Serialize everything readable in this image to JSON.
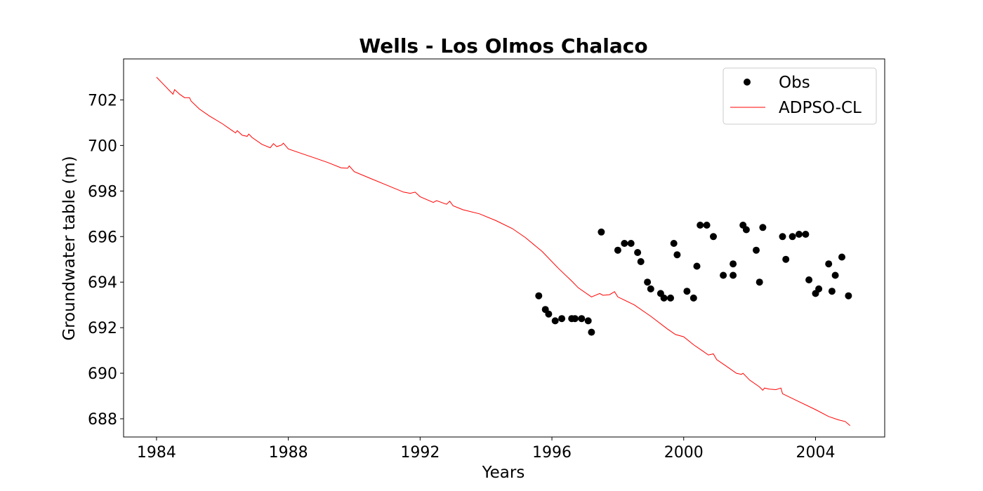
{
  "chart_data": {
    "type": "line",
    "title": "Wells - Los Olmos Chalaco",
    "xlabel": "Years",
    "ylabel": "Groundwater table (m)",
    "xlim": [
      1983.0,
      2006.1
    ],
    "ylim": [
      687.2,
      703.8
    ],
    "x_ticks": [
      1984,
      1988,
      1992,
      1996,
      2000,
      2004
    ],
    "y_ticks": [
      688,
      690,
      692,
      694,
      696,
      698,
      700,
      702
    ],
    "grid": false,
    "legend_position": "upper right",
    "colors": {
      "Obs": "#000000",
      "ADPSO-CL": "#ff0000"
    },
    "series": [
      {
        "name": "Obs",
        "style": "markers",
        "points": [
          [
            1995.6,
            693.4
          ],
          [
            1995.8,
            692.8
          ],
          [
            1995.9,
            692.6
          ],
          [
            1996.1,
            692.3
          ],
          [
            1996.3,
            692.4
          ],
          [
            1996.6,
            692.4
          ],
          [
            1996.7,
            692.4
          ],
          [
            1996.9,
            692.4
          ],
          [
            1997.1,
            692.3
          ],
          [
            1997.2,
            691.8
          ],
          [
            1997.5,
            696.2
          ],
          [
            1998.0,
            695.4
          ],
          [
            1998.2,
            695.7
          ],
          [
            1998.4,
            695.7
          ],
          [
            1998.6,
            695.3
          ],
          [
            1998.7,
            694.9
          ],
          [
            1998.9,
            694.0
          ],
          [
            1999.0,
            693.7
          ],
          [
            1999.3,
            693.5
          ],
          [
            1999.4,
            693.3
          ],
          [
            1999.6,
            693.3
          ],
          [
            1999.7,
            695.7
          ],
          [
            1999.8,
            695.2
          ],
          [
            2000.1,
            693.6
          ],
          [
            2000.3,
            693.3
          ],
          [
            2000.4,
            694.7
          ],
          [
            2000.5,
            696.5
          ],
          [
            2000.7,
            696.5
          ],
          [
            2000.9,
            696.0
          ],
          [
            2001.2,
            694.3
          ],
          [
            2001.5,
            694.3
          ],
          [
            2001.5,
            694.8
          ],
          [
            2001.8,
            696.5
          ],
          [
            2001.9,
            696.3
          ],
          [
            2002.2,
            695.4
          ],
          [
            2002.3,
            694.0
          ],
          [
            2002.4,
            696.4
          ],
          [
            2003.0,
            696.0
          ],
          [
            2003.1,
            695.0
          ],
          [
            2003.3,
            696.0
          ],
          [
            2003.5,
            696.1
          ],
          [
            2003.7,
            696.1
          ],
          [
            2003.8,
            694.1
          ],
          [
            2004.0,
            693.5
          ],
          [
            2004.1,
            693.7
          ],
          [
            2004.4,
            694.8
          ],
          [
            2004.5,
            693.6
          ],
          [
            2004.6,
            694.3
          ],
          [
            2004.8,
            695.1
          ],
          [
            2005.0,
            693.4
          ]
        ]
      },
      {
        "name": "ADPSO-CL",
        "style": "line",
        "points": [
          [
            1984.0,
            703.0
          ],
          [
            1984.2,
            702.7
          ],
          [
            1984.4,
            702.4
          ],
          [
            1984.5,
            702.25
          ],
          [
            1984.55,
            702.45
          ],
          [
            1984.7,
            702.25
          ],
          [
            1984.85,
            702.1
          ],
          [
            1985.0,
            702.1
          ],
          [
            1985.05,
            701.95
          ],
          [
            1985.3,
            701.6
          ],
          [
            1985.6,
            701.3
          ],
          [
            1986.0,
            700.95
          ],
          [
            1986.3,
            700.65
          ],
          [
            1986.4,
            700.55
          ],
          [
            1986.45,
            700.65
          ],
          [
            1986.6,
            700.45
          ],
          [
            1986.75,
            700.4
          ],
          [
            1986.8,
            700.5
          ],
          [
            1986.9,
            700.35
          ],
          [
            1987.2,
            700.05
          ],
          [
            1987.45,
            699.9
          ],
          [
            1987.55,
            700.08
          ],
          [
            1987.65,
            699.95
          ],
          [
            1987.8,
            700.02
          ],
          [
            1987.85,
            700.1
          ],
          [
            1988.0,
            699.85
          ],
          [
            1988.4,
            699.65
          ],
          [
            1988.8,
            699.45
          ],
          [
            1989.2,
            699.25
          ],
          [
            1989.6,
            699.02
          ],
          [
            1989.8,
            699.0
          ],
          [
            1989.85,
            699.1
          ],
          [
            1990.0,
            698.85
          ],
          [
            1990.5,
            698.55
          ],
          [
            1991.0,
            698.25
          ],
          [
            1991.5,
            697.95
          ],
          [
            1991.7,
            697.9
          ],
          [
            1991.85,
            697.95
          ],
          [
            1992.0,
            697.75
          ],
          [
            1992.4,
            697.5
          ],
          [
            1992.5,
            697.58
          ],
          [
            1992.8,
            697.42
          ],
          [
            1992.9,
            697.55
          ],
          [
            1993.0,
            697.35
          ],
          [
            1993.3,
            697.18
          ],
          [
            1993.8,
            697.0
          ],
          [
            1994.3,
            696.7
          ],
          [
            1994.8,
            696.35
          ],
          [
            1995.2,
            695.95
          ],
          [
            1995.7,
            695.35
          ],
          [
            1996.2,
            694.6
          ],
          [
            1996.6,
            694.05
          ],
          [
            1996.8,
            693.75
          ],
          [
            1997.2,
            693.35
          ],
          [
            1997.45,
            693.5
          ],
          [
            1997.55,
            693.42
          ],
          [
            1997.75,
            693.45
          ],
          [
            1997.9,
            693.58
          ],
          [
            1998.0,
            693.35
          ],
          [
            1998.5,
            693.0
          ],
          [
            1999.0,
            692.5
          ],
          [
            1999.5,
            691.95
          ],
          [
            1999.75,
            691.7
          ],
          [
            2000.0,
            691.6
          ],
          [
            2000.3,
            691.25
          ],
          [
            2000.6,
            690.95
          ],
          [
            2000.75,
            690.8
          ],
          [
            2000.9,
            690.85
          ],
          [
            2001.0,
            690.6
          ],
          [
            2001.3,
            690.3
          ],
          [
            2001.6,
            690.0
          ],
          [
            2001.75,
            689.95
          ],
          [
            2001.8,
            690.0
          ],
          [
            2002.0,
            689.7
          ],
          [
            2002.3,
            689.4
          ],
          [
            2002.4,
            689.25
          ],
          [
            2002.45,
            689.35
          ],
          [
            2002.6,
            689.3
          ],
          [
            2002.8,
            689.28
          ],
          [
            2002.95,
            689.35
          ],
          [
            2003.0,
            689.1
          ],
          [
            2003.5,
            688.75
          ],
          [
            2004.0,
            688.4
          ],
          [
            2004.4,
            688.1
          ],
          [
            2004.7,
            687.95
          ],
          [
            2004.9,
            687.88
          ],
          [
            2005.05,
            687.7
          ]
        ]
      }
    ]
  }
}
